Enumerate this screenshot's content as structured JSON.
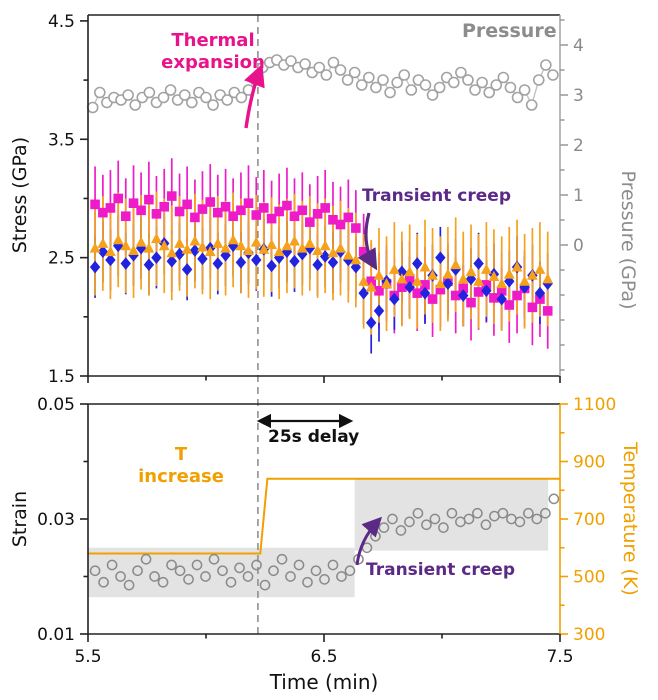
{
  "colors": {
    "magenta": "#ee1cc8",
    "blue": "#2323dd",
    "orange": "#f5a11c",
    "pressure_gray": "#a2a2a2",
    "pressure_line_gray": "#c2c2c2",
    "strain_gray": "#8a8a8a",
    "temp_orange": "#f0a000",
    "purple": "#5b2a86",
    "annotation_magenta": "#e8128c",
    "dashed_gray": "#909090",
    "band_gray": "#e3e3e3",
    "axis_black": "#222222"
  },
  "chart_data": [
    {
      "type": "scatter",
      "panel": "top",
      "vline_x": 6.22,
      "x_axis": {
        "label": "Time (min)",
        "range": [
          5.5,
          7.5
        ],
        "ticks": [
          5.5,
          6.5,
          7.5
        ],
        "tick_labels": [
          "5.5",
          "6.5",
          "7.5"
        ],
        "minor_ticks": [
          6.0,
          7.0
        ],
        "labels_visible": false
      },
      "left_axis": {
        "label": "Stress (GPa)",
        "range": [
          1.5,
          4.55
        ],
        "ticks": [
          1.5,
          2.5,
          3.5,
          4.5
        ],
        "tick_labels": [
          "1.5",
          "2.5",
          "3.5",
          "4.5"
        ],
        "minor_ticks": [
          2.0,
          3.0,
          4.0
        ]
      },
      "right_axis": {
        "label": "Pressure (GPa)",
        "range": [
          -2.62,
          4.6
        ],
        "ticks": [
          0,
          1,
          2,
          3,
          4
        ],
        "tick_labels": [
          "0",
          "1",
          "2",
          "3",
          "4"
        ],
        "minor_ticks": [
          -2.5,
          -2.0,
          -1.5,
          -1.0,
          -0.5,
          0.5,
          1.5,
          2.5,
          3.5,
          4.5
        ]
      },
      "annotations": [
        {
          "text": "Thermal\nexpansion",
          "color": "#e8128c"
        },
        {
          "text": "Pressure",
          "color": "#8c8c8c"
        },
        {
          "text": "Transient creep",
          "color": "#5b2a86"
        }
      ],
      "series": [
        {
          "name": "Pressure",
          "marker": "circle",
          "axis": "right",
          "line": true,
          "color": "#a2a2a2",
          "line_color": "#c2c2c2",
          "x": [
            5.52,
            5.55,
            5.58,
            5.61,
            5.64,
            5.67,
            5.7,
            5.73,
            5.76,
            5.79,
            5.82,
            5.85,
            5.88,
            5.91,
            5.94,
            5.97,
            6.0,
            6.03,
            6.06,
            6.09,
            6.12,
            6.15,
            6.18,
            6.21,
            6.24,
            6.27,
            6.3,
            6.33,
            6.36,
            6.39,
            6.42,
            6.45,
            6.48,
            6.51,
            6.54,
            6.57,
            6.6,
            6.63,
            6.66,
            6.69,
            6.72,
            6.75,
            6.78,
            6.81,
            6.84,
            6.87,
            6.9,
            6.93,
            6.96,
            6.99,
            7.02,
            7.05,
            7.08,
            7.11,
            7.14,
            7.17,
            7.2,
            7.23,
            7.26,
            7.29,
            7.32,
            7.35,
            7.38,
            7.41,
            7.44,
            7.47
          ],
          "y": [
            2.75,
            3.05,
            2.85,
            2.95,
            2.9,
            3.0,
            2.8,
            2.95,
            3.05,
            2.85,
            2.95,
            3.1,
            2.9,
            3.0,
            2.85,
            3.05,
            2.95,
            2.8,
            3.0,
            2.9,
            3.05,
            2.95,
            3.1,
            3.3,
            3.55,
            3.65,
            3.7,
            3.6,
            3.68,
            3.55,
            3.62,
            3.45,
            3.55,
            3.4,
            3.65,
            3.5,
            3.3,
            3.45,
            3.2,
            3.35,
            3.15,
            3.3,
            3.05,
            3.25,
            3.4,
            3.1,
            3.3,
            3.2,
            3.0,
            3.15,
            3.35,
            3.25,
            3.45,
            3.3,
            3.1,
            3.25,
            3.05,
            3.2,
            3.35,
            3.15,
            2.95,
            3.1,
            2.8,
            3.3,
            3.6,
            3.4
          ]
        },
        {
          "name": "Stress run 1",
          "marker": "square",
          "axis": "left",
          "err": 0.32,
          "color": "#ee1cc8",
          "x": [
            5.53,
            5.563,
            5.595,
            5.628,
            5.66,
            5.693,
            5.725,
            5.758,
            5.79,
            5.823,
            5.855,
            5.888,
            5.92,
            5.953,
            5.985,
            6.018,
            6.05,
            6.083,
            6.115,
            6.148,
            6.18,
            6.213,
            6.245,
            6.278,
            6.31,
            6.343,
            6.375,
            6.408,
            6.44,
            6.473,
            6.505,
            6.538,
            6.57,
            6.603,
            6.635,
            6.668,
            6.7,
            6.733,
            6.765,
            6.798,
            6.83,
            6.863,
            6.895,
            6.928,
            6.96,
            6.993,
            7.025,
            7.058,
            7.09,
            7.123,
            7.155,
            7.188,
            7.22,
            7.253,
            7.285,
            7.318,
            7.35,
            7.383,
            7.415,
            7.448
          ],
          "y": [
            2.95,
            2.88,
            2.92,
            3.0,
            2.85,
            2.96,
            2.9,
            2.99,
            2.87,
            2.93,
            3.02,
            2.89,
            2.95,
            2.84,
            2.91,
            2.97,
            2.88,
            2.93,
            2.85,
            2.9,
            2.96,
            2.86,
            2.92,
            2.83,
            2.89,
            2.94,
            2.85,
            2.9,
            2.8,
            2.87,
            2.92,
            2.82,
            2.78,
            2.84,
            2.75,
            2.55,
            2.3,
            2.22,
            2.28,
            2.18,
            2.25,
            2.32,
            2.2,
            2.27,
            2.15,
            2.23,
            2.3,
            2.18,
            2.24,
            2.12,
            2.21,
            2.27,
            2.16,
            2.22,
            2.1,
            2.18,
            2.24,
            2.08,
            2.15,
            2.05
          ]
        },
        {
          "name": "Stress run 2",
          "marker": "diamond",
          "axis": "left",
          "err": 0.26,
          "color": "#2323dd",
          "x": [
            5.53,
            5.563,
            5.595,
            5.628,
            5.66,
            5.693,
            5.725,
            5.758,
            5.79,
            5.823,
            5.855,
            5.888,
            5.92,
            5.953,
            5.985,
            6.018,
            6.05,
            6.083,
            6.115,
            6.148,
            6.18,
            6.213,
            6.245,
            6.278,
            6.31,
            6.343,
            6.375,
            6.408,
            6.44,
            6.473,
            6.505,
            6.538,
            6.57,
            6.603,
            6.635,
            6.668,
            6.7,
            6.733,
            6.765,
            6.798,
            6.83,
            6.863,
            6.895,
            6.928,
            6.96,
            6.993,
            7.025,
            7.058,
            7.09,
            7.123,
            7.155,
            7.188,
            7.22,
            7.253,
            7.285,
            7.318,
            7.35,
            7.383,
            7.415,
            7.448
          ],
          "y": [
            2.42,
            2.55,
            2.48,
            2.6,
            2.45,
            2.52,
            2.58,
            2.44,
            2.5,
            2.62,
            2.47,
            2.53,
            2.4,
            2.56,
            2.49,
            2.58,
            2.45,
            2.52,
            2.6,
            2.46,
            2.54,
            2.48,
            2.57,
            2.43,
            2.5,
            2.55,
            2.47,
            2.53,
            2.58,
            2.44,
            2.51,
            2.46,
            2.55,
            2.48,
            2.42,
            2.2,
            1.95,
            2.05,
            2.3,
            2.15,
            2.38,
            2.25,
            2.45,
            2.2,
            2.35,
            2.5,
            2.28,
            2.4,
            2.18,
            2.32,
            2.45,
            2.22,
            2.36,
            2.15,
            2.3,
            2.42,
            2.25,
            2.35,
            2.2,
            2.28
          ]
        },
        {
          "name": "Stress run 3",
          "marker": "triangle",
          "axis": "left",
          "err": 0.4,
          "color": "#f5a11c",
          "x": [
            5.53,
            5.563,
            5.595,
            5.628,
            5.66,
            5.693,
            5.725,
            5.758,
            5.79,
            5.823,
            5.855,
            5.888,
            5.92,
            5.953,
            5.985,
            6.018,
            6.05,
            6.083,
            6.115,
            6.148,
            6.18,
            6.213,
            6.245,
            6.278,
            6.31,
            6.343,
            6.375,
            6.408,
            6.44,
            6.473,
            6.505,
            6.538,
            6.57,
            6.603,
            6.635,
            6.668,
            6.7,
            6.733,
            6.765,
            6.798,
            6.83,
            6.863,
            6.895,
            6.928,
            6.96,
            6.993,
            7.025,
            7.058,
            7.09,
            7.123,
            7.155,
            7.188,
            7.22,
            7.253,
            7.285,
            7.318,
            7.35,
            7.383,
            7.415,
            7.448
          ],
          "y": [
            2.58,
            2.62,
            2.55,
            2.65,
            2.6,
            2.56,
            2.63,
            2.58,
            2.66,
            2.6,
            2.54,
            2.62,
            2.57,
            2.64,
            2.59,
            2.55,
            2.62,
            2.58,
            2.65,
            2.6,
            2.56,
            2.63,
            2.57,
            2.61,
            2.55,
            2.6,
            2.64,
            2.58,
            2.62,
            2.56,
            2.6,
            2.54,
            2.58,
            2.52,
            2.48,
            2.3,
            2.25,
            2.35,
            2.28,
            2.4,
            2.32,
            2.38,
            2.3,
            2.42,
            2.35,
            2.28,
            2.36,
            2.44,
            2.32,
            2.38,
            2.3,
            2.4,
            2.34,
            2.28,
            2.36,
            2.42,
            2.3,
            2.35,
            2.4,
            2.32
          ]
        }
      ]
    },
    {
      "type": "scatter",
      "panel": "bottom",
      "vline_x": 6.22,
      "x_axis": {
        "label": "Time (min)",
        "range": [
          5.5,
          7.5
        ],
        "ticks": [
          5.5,
          6.5,
          7.5
        ],
        "tick_labels": [
          "5.5",
          "6.5",
          "7.5"
        ],
        "minor_ticks": [
          6.0,
          7.0
        ],
        "labels_visible": true
      },
      "left_axis": {
        "label": "Strain",
        "range": [
          0.01,
          0.05
        ],
        "ticks": [
          0.01,
          0.03,
          0.05
        ],
        "tick_labels": [
          "0.01",
          "0.03",
          "0.05"
        ],
        "minor_ticks": [
          0.02,
          0.04
        ]
      },
      "right_axis": {
        "label": "Temperature (K)",
        "range": [
          300,
          1100
        ],
        "ticks": [
          300,
          500,
          700,
          900,
          1100
        ],
        "tick_labels": [
          "300",
          "500",
          "700",
          "900",
          "1100"
        ],
        "minor_ticks": [
          400,
          600,
          800,
          1000
        ]
      },
      "bands": [
        {
          "x0": 5.5,
          "x1": 6.63,
          "y0": 0.0164,
          "y1": 0.025
        },
        {
          "x0": 6.63,
          "x1": 7.45,
          "y0": 0.0245,
          "y1": 0.037
        }
      ],
      "annotations": [
        {
          "text": "25s delay",
          "color": "#111111"
        },
        {
          "text": "T\nincrease",
          "color": "#f0a000"
        },
        {
          "text": "Transient creep",
          "color": "#5b2a86"
        }
      ],
      "series": [
        {
          "name": "Strain",
          "marker": "circle",
          "axis": "left",
          "color": "#8a8a8a",
          "x": [
            5.53,
            5.566,
            5.602,
            5.638,
            5.674,
            5.71,
            5.746,
            5.782,
            5.818,
            5.854,
            5.89,
            5.926,
            5.962,
            5.998,
            6.034,
            6.07,
            6.106,
            6.142,
            6.178,
            6.214,
            6.25,
            6.286,
            6.322,
            6.358,
            6.394,
            6.43,
            6.466,
            6.502,
            6.538,
            6.574,
            6.61,
            6.646,
            6.682,
            6.718,
            6.754,
            6.79,
            6.826,
            6.862,
            6.898,
            6.934,
            6.97,
            7.006,
            7.042,
            7.078,
            7.114,
            7.15,
            7.186,
            7.222,
            7.258,
            7.294,
            7.33,
            7.366,
            7.402,
            7.438,
            7.474
          ],
          "y": [
            0.021,
            0.019,
            0.022,
            0.02,
            0.0185,
            0.021,
            0.023,
            0.02,
            0.019,
            0.022,
            0.021,
            0.0195,
            0.022,
            0.02,
            0.023,
            0.021,
            0.019,
            0.0215,
            0.02,
            0.022,
            0.0185,
            0.021,
            0.023,
            0.02,
            0.022,
            0.019,
            0.021,
            0.0195,
            0.022,
            0.02,
            0.021,
            0.023,
            0.025,
            0.027,
            0.0285,
            0.03,
            0.028,
            0.0295,
            0.031,
            0.029,
            0.03,
            0.0285,
            0.031,
            0.0295,
            0.03,
            0.031,
            0.029,
            0.0305,
            0.031,
            0.03,
            0.0295,
            0.031,
            0.03,
            0.031,
            0.0335
          ]
        },
        {
          "name": "Temperature",
          "type": "step",
          "axis": "right",
          "color": "#f0a000",
          "x": [
            5.5,
            6.23,
            6.26,
            7.5
          ],
          "y": [
            580,
            580,
            840,
            840
          ]
        }
      ]
    }
  ]
}
